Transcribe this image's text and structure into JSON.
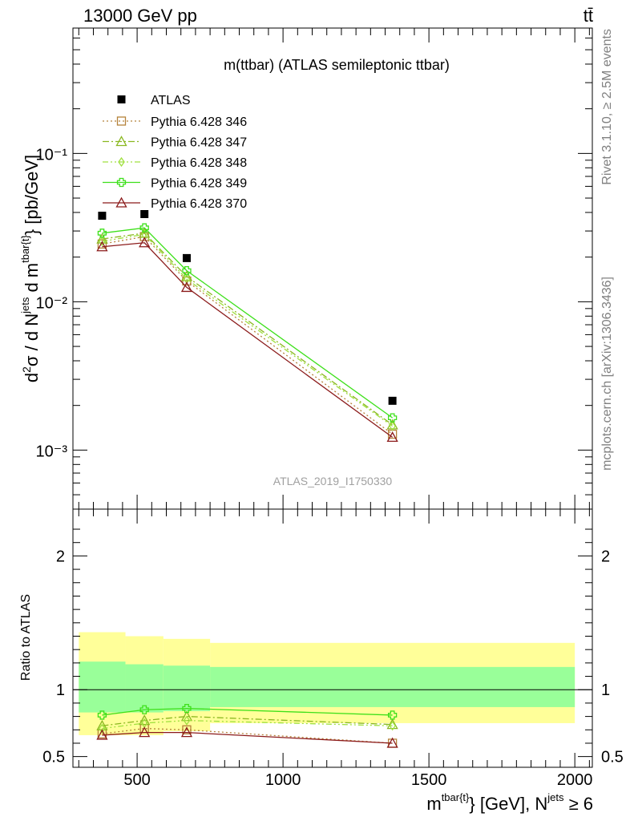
{
  "header": {
    "energy_label": "13000 GeV pp",
    "process_label": "tt̄"
  },
  "side_labels": {
    "rivet": "Rivet 3.1.10, ≥ 2.5M events",
    "site": "mcplots.cern.ch [arXiv:1306.3436]"
  },
  "chart_data": [
    {
      "type": "line",
      "title": "m(ttbar) (ATLAS semileptonic ttbar)",
      "watermark": "ATLAS_2019_I1750330",
      "ylabel": "d²σ / d N^jets d m^tbar{t}} [pb/GeV]",
      "yscale": "log",
      "ylim": [
        0.0004,
        0.7
      ],
      "xlim": [
        280,
        2060
      ],
      "y_tick_labels": [
        "10⁻³",
        "10⁻²",
        "10⁻¹"
      ],
      "x": [
        380,
        525,
        670,
        1375
      ],
      "data_series": {
        "name": "ATLAS",
        "values": [
          0.038,
          0.039,
          0.0197,
          0.00215
        ],
        "color": "#000000"
      },
      "series": [
        {
          "name": "Pythia 6.428 346",
          "values": [
            0.0245,
            0.0275,
            0.0138,
            0.00128
          ],
          "color": "#b5823a",
          "marker": "open-square",
          "dash": "dotted"
        },
        {
          "name": "Pythia 6.428 347",
          "values": [
            0.0265,
            0.029,
            0.0148,
            0.00148
          ],
          "color": "#8ab820",
          "marker": "open-triangle",
          "dash": "dash-dot"
        },
        {
          "name": "Pythia 6.428 348",
          "values": [
            0.0255,
            0.0285,
            0.0142,
            0.00145
          ],
          "color": "#a0e040",
          "marker": "open-diamond",
          "dash": "dash-dot-dot"
        },
        {
          "name": "Pythia 6.428 349",
          "values": [
            0.029,
            0.0315,
            0.0162,
            0.00165
          ],
          "color": "#3de01a",
          "marker": "open-cross",
          "dash": "solid"
        },
        {
          "name": "Pythia 6.428 370",
          "values": [
            0.0235,
            0.025,
            0.0125,
            0.00122
          ],
          "color": "#8b1a1a",
          "marker": "open-triangle",
          "dash": "solid"
        }
      ]
    },
    {
      "type": "line",
      "ylabel": "Ratio to ATLAS",
      "xlabel": "m^tbar{t}} [GeV], N^jets ≥ 6",
      "ylim": [
        0.42,
        2.35
      ],
      "xlim": [
        280,
        2060
      ],
      "y_ticks": [
        0.5,
        1,
        2
      ],
      "y_tick_labels": [
        "0.5",
        "1",
        "2"
      ],
      "x_ticks": [
        500,
        1000,
        1500,
        2000
      ],
      "x_tick_labels": [
        "500",
        "1000",
        "1500",
        "2000"
      ],
      "x": [
        380,
        525,
        670,
        1375
      ],
      "band_colors": {
        "outer": "#ffff99",
        "inner": "#99ff99"
      },
      "band_bins": [
        {
          "x0": 300,
          "x1": 460,
          "in_lo": 0.83,
          "in_hi": 1.21,
          "out_lo": 0.66,
          "out_hi": 1.43
        },
        {
          "x0": 460,
          "x1": 590,
          "in_lo": 0.83,
          "in_hi": 1.19,
          "out_lo": 0.66,
          "out_hi": 1.4
        },
        {
          "x0": 590,
          "x1": 750,
          "in_lo": 0.84,
          "in_hi": 1.18,
          "out_lo": 0.69,
          "out_hi": 1.38
        },
        {
          "x0": 750,
          "x1": 2000,
          "in_lo": 0.87,
          "in_hi": 1.17,
          "out_lo": 0.75,
          "out_hi": 1.35
        }
      ],
      "series": [
        {
          "name": "Pythia 6.428 346",
          "values": [
            0.67,
            0.71,
            0.7,
            0.6
          ],
          "color": "#b5823a"
        },
        {
          "name": "Pythia 6.428 347",
          "values": [
            0.73,
            0.77,
            0.8,
            0.74
          ],
          "color": "#8ab820"
        },
        {
          "name": "Pythia 6.428 348",
          "values": [
            0.71,
            0.75,
            0.77,
            0.73
          ],
          "color": "#a0e040"
        },
        {
          "name": "Pythia 6.428 349",
          "values": [
            0.81,
            0.85,
            0.86,
            0.81
          ],
          "color": "#3de01a"
        },
        {
          "name": "Pythia 6.428 370",
          "values": [
            0.66,
            0.68,
            0.68,
            0.6
          ],
          "color": "#8b1a1a"
        }
      ]
    }
  ]
}
